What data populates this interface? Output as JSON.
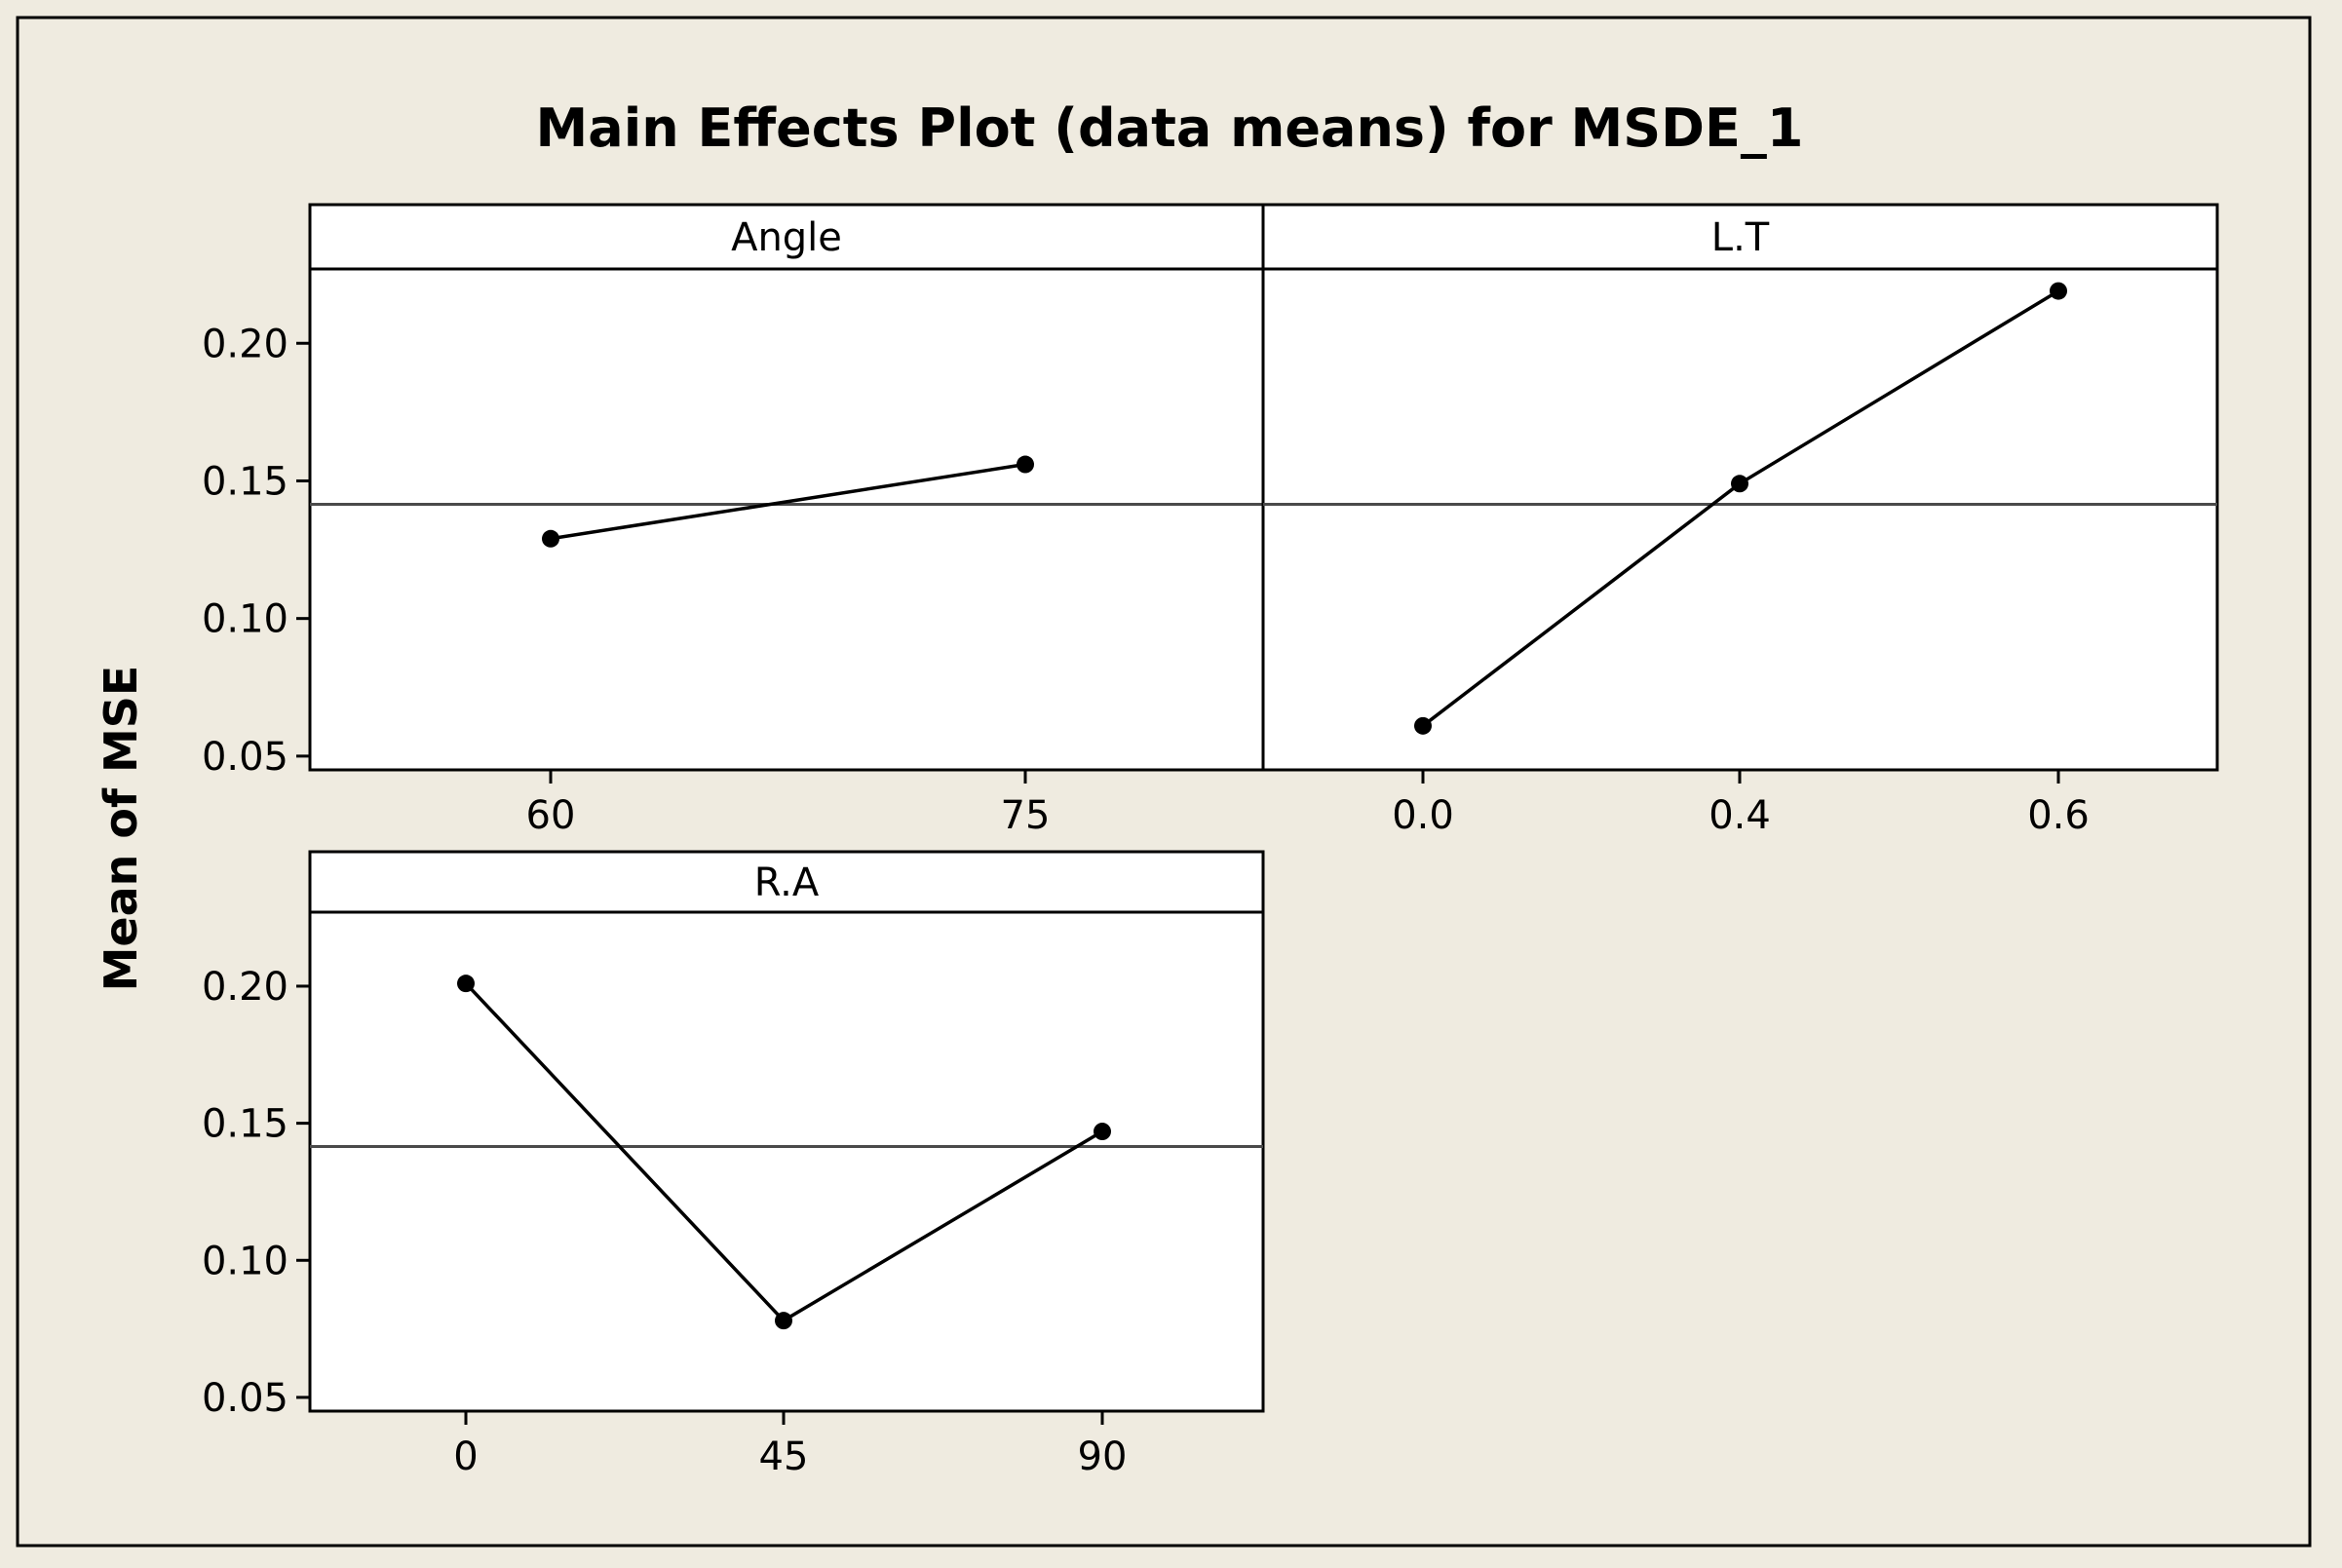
{
  "colors": {
    "background": "#efebe0",
    "panel": "#ffffff",
    "ink": "#000000",
    "mean_line": "#4a4a4a"
  },
  "chart_data": {
    "type": "line",
    "title": "Main Effects Plot (data means) for MSDE_1",
    "ylabel": "Mean of MSE",
    "ylim": [
      0.045,
      0.227
    ],
    "yticks": [
      "0.05",
      "0.10",
      "0.15",
      "0.20"
    ],
    "overall_mean": 0.1415,
    "panels": [
      {
        "factor": "Angle",
        "levels": [
          "60",
          "75"
        ],
        "values": [
          0.129,
          0.156
        ]
      },
      {
        "factor": "L.T",
        "levels": [
          "0.0",
          "0.4",
          "0.6"
        ],
        "values": [
          0.061,
          0.149,
          0.219
        ]
      },
      {
        "factor": "R.A",
        "levels": [
          "0",
          "45",
          "90"
        ],
        "values": [
          0.201,
          0.078,
          0.147
        ]
      }
    ]
  }
}
